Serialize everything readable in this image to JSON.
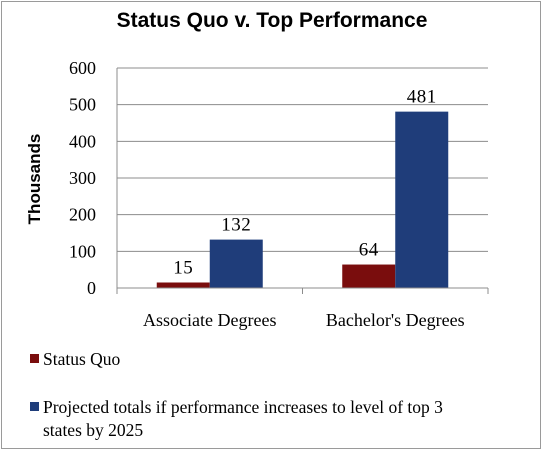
{
  "chart_data": {
    "type": "bar",
    "title": "Status Quo v. Top Performance",
    "ylabel": "Thousands",
    "xlabel": "",
    "ylim": [
      0,
      600
    ],
    "yticks": [
      0,
      100,
      200,
      300,
      400,
      500,
      600
    ],
    "grid": true,
    "legend_position": "bottom",
    "categories": [
      "Associate Degrees",
      "Bachelor's Degrees"
    ],
    "series": [
      {
        "name": "Status Quo",
        "values": [
          15,
          64
        ],
        "color": "#7a0d0d"
      },
      {
        "name": "Projected totals if performance increases to level of top 3 states by 2025",
        "values": [
          132,
          481
        ],
        "color": "#1f3d7a"
      }
    ],
    "legend_lines": [
      [
        "Status Quo"
      ],
      [
        "Projected totals if performance increases to level of top 3",
        "states by 2025"
      ]
    ]
  }
}
